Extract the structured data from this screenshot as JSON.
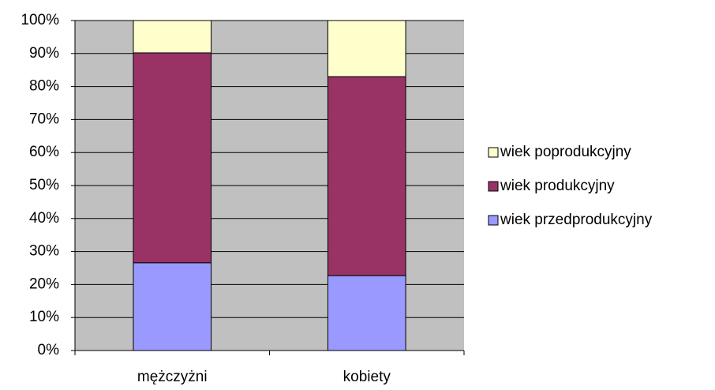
{
  "chart_data": {
    "type": "stacked_bar_100",
    "categories": [
      "mężczyżni",
      "kobiety"
    ],
    "series": [
      {
        "name": "wiek przedprodukcyjny",
        "color": "#9999ff",
        "values": [
          26.6,
          22.7
        ]
      },
      {
        "name": "wiek produkcyjny",
        "color": "#993366",
        "values": [
          63.6,
          60.3
        ]
      },
      {
        "name": "wiek poprodukcyjny",
        "color": "#ffffcc",
        "values": [
          9.8,
          17.0
        ]
      }
    ],
    "ylim": [
      0,
      100
    ],
    "yticks": [
      {
        "value": 0,
        "label": "0%"
      },
      {
        "value": 10,
        "label": "10%"
      },
      {
        "value": 20,
        "label": "20%"
      },
      {
        "value": 30,
        "label": "30%"
      },
      {
        "value": 40,
        "label": "40%"
      },
      {
        "value": 50,
        "label": "50%"
      },
      {
        "value": 60,
        "label": "60%"
      },
      {
        "value": 70,
        "label": "70%"
      },
      {
        "value": 80,
        "label": "80%"
      },
      {
        "value": 90,
        "label": "90%"
      },
      {
        "value": 100,
        "label": "100%"
      }
    ],
    "grid": true,
    "plot_background": "#c0c0c0",
    "legend": "right"
  }
}
